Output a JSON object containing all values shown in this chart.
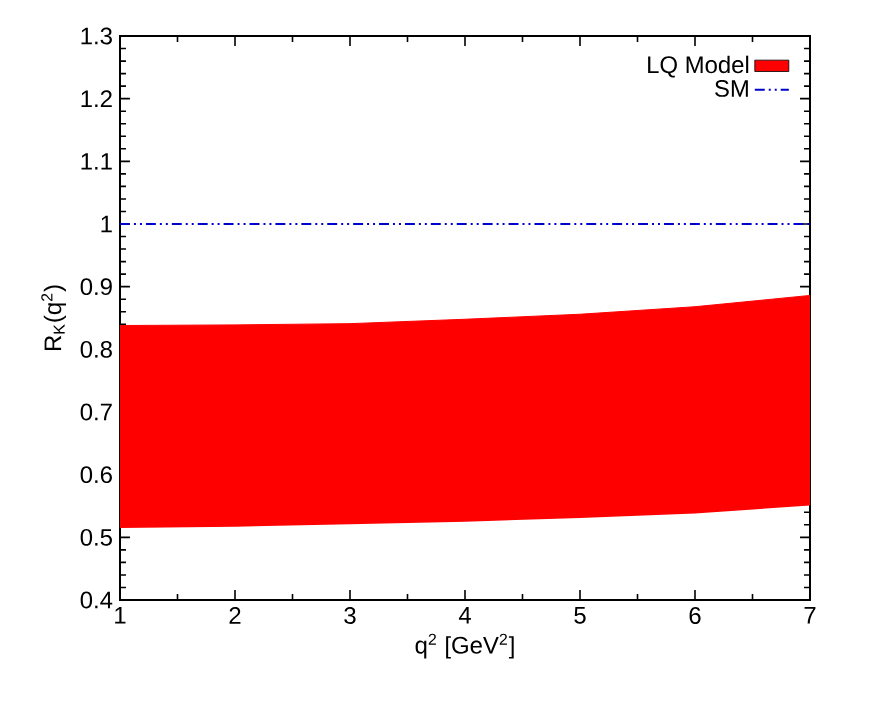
{
  "chart_data": {
    "type": "line",
    "xlabel": "q$^{2}$ [GeV$^{2}$]",
    "ylabel": "R$_{K}$(q$^{2}$)",
    "series": [
      {
        "name": "LQ Model",
        "color": "#ff0000",
        "x": [
          1,
          2,
          3,
          4,
          5,
          6,
          7
        ],
        "lower": [
          0.515,
          0.517,
          0.521,
          0.525,
          0.531,
          0.538,
          0.551
        ],
        "upper": [
          0.838,
          0.839,
          0.841,
          0.848,
          0.856,
          0.868,
          0.886
        ],
        "values": [
          0.838,
          0.839,
          0.841,
          0.848,
          0.856,
          0.868,
          0.886
        ]
      },
      {
        "name": "SM",
        "type": "line",
        "color": "#0000cc",
        "x": [
          1,
          7
        ],
        "values": [
          1,
          1
        ],
        "line_style": "dashdotdot"
      }
    ],
    "xlim": [
      1,
      7
    ],
    "xticks": [
      1,
      2,
      3,
      4,
      5,
      6,
      7
    ],
    "ylim": [
      0.4,
      1.3
    ],
    "yticks": [
      {
        "value": 0.4,
        "label": "0.4"
      },
      {
        "value": 0.5,
        "label": "0.5"
      },
      {
        "value": 0.6,
        "label": "0.6"
      },
      {
        "value": 0.7,
        "label": "0.7"
      },
      {
        "value": 0.8,
        "label": "0.8"
      },
      {
        "value": 0.9,
        "label": "0.9"
      },
      {
        "value": 1,
        "label": "1"
      },
      {
        "value": 1.1,
        "label": "1.1"
      },
      {
        "value": 1.2,
        "label": "1.2"
      },
      {
        "value": 1.3,
        "label": "1.3"
      }
    ],
    "legend": "top right",
    "grid": false
  }
}
